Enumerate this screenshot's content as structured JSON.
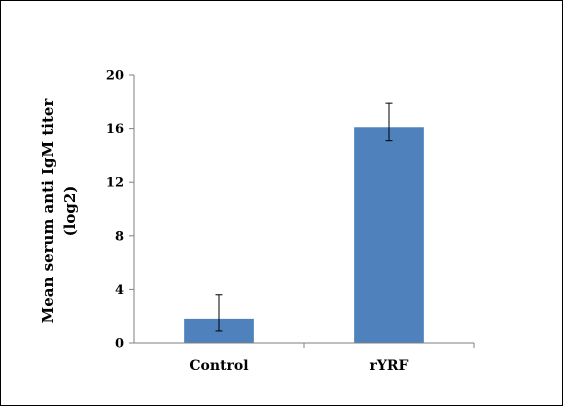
{
  "chart_data": {
    "type": "bar",
    "title": "",
    "xlabel": "",
    "ylabel_lines": [
      "Mean serum anti IgM titer",
      "(log2)"
    ],
    "categories": [
      "Control",
      "rYRF"
    ],
    "series": [
      {
        "values": [
          1.8,
          16.1
        ],
        "error": [
          [
            0.9,
            3.6
          ],
          [
            15.1,
            17.9
          ]
        ],
        "color": "#4F81BD"
      }
    ],
    "ylim": [
      0,
      20
    ],
    "yticks": [
      0,
      4,
      8,
      12,
      16,
      20
    ],
    "yticks_display": [
      "0",
      "4",
      "8",
      "12",
      "16",
      "20"
    ],
    "grid": false,
    "legend": "none"
  }
}
